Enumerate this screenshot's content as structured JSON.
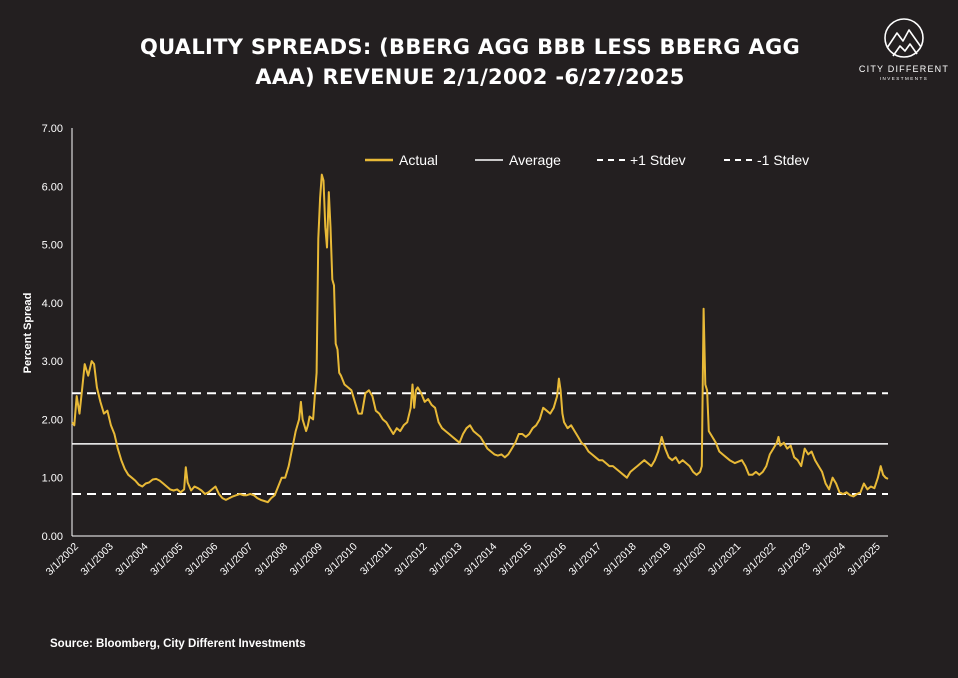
{
  "title_line1": "QUALITY SPREADS: (BBERG AGG BBB LESS BBERG AGG",
  "title_line2": "AAA) REVENUE 2/1/2002 -6/27/2025",
  "logo": {
    "name": "CITY DIFFERENT",
    "sub": "INVESTMENTS",
    "icon": "mountain-circle-icon"
  },
  "source": "Source: Bloomberg, City Different Investments",
  "colors": {
    "background": "#231f20",
    "actual": "#e8b937",
    "lines": "#ffffff"
  },
  "chart_data": {
    "type": "line",
    "ylabel": "Percent Spread",
    "ylim": [
      0,
      7
    ],
    "y_ticks": [
      "0.00",
      "1.00",
      "2.00",
      "3.00",
      "4.00",
      "5.00",
      "6.00",
      "7.00"
    ],
    "x_ticks": [
      "3/1/2002",
      "3/1/2003",
      "3/1/2004",
      "3/1/2005",
      "3/1/2006",
      "3/1/2007",
      "3/1/2008",
      "3/1/2009",
      "3/1/2010",
      "3/1/2011",
      "3/1/2012",
      "3/1/2013",
      "3/1/2014",
      "3/1/2015",
      "3/1/2016",
      "3/1/2017",
      "3/1/2018",
      "3/1/2019",
      "3/1/2020",
      "3/1/2021",
      "3/1/2022",
      "3/1/2023",
      "3/1/2024",
      "3/1/2025"
    ],
    "x_range": [
      "2/1/2002",
      "6/27/2025"
    ],
    "legend": [
      "Actual",
      "Average",
      "+1 Stdev",
      "-1 Stdev"
    ],
    "legend_position": "top",
    "grid": false,
    "average": 1.58,
    "plus_1_stdev": 2.45,
    "minus_1_stdev": 0.72,
    "series": [
      {
        "name": "Actual",
        "points": [
          [
            2002.09,
            1.95
          ],
          [
            2002.15,
            1.9
          ],
          [
            2002.22,
            2.4
          ],
          [
            2002.3,
            2.1
          ],
          [
            2002.38,
            2.55
          ],
          [
            2002.45,
            2.95
          ],
          [
            2002.55,
            2.75
          ],
          [
            2002.65,
            3.0
          ],
          [
            2002.72,
            2.95
          ],
          [
            2002.8,
            2.55
          ],
          [
            2002.9,
            2.3
          ],
          [
            2003.0,
            2.1
          ],
          [
            2003.1,
            2.15
          ],
          [
            2003.2,
            1.9
          ],
          [
            2003.3,
            1.75
          ],
          [
            2003.4,
            1.5
          ],
          [
            2003.5,
            1.3
          ],
          [
            2003.6,
            1.15
          ],
          [
            2003.7,
            1.05
          ],
          [
            2003.8,
            1.0
          ],
          [
            2003.9,
            0.95
          ],
          [
            2004.0,
            0.88
          ],
          [
            2004.1,
            0.85
          ],
          [
            2004.2,
            0.9
          ],
          [
            2004.3,
            0.92
          ],
          [
            2004.4,
            0.97
          ],
          [
            2004.5,
            0.98
          ],
          [
            2004.6,
            0.95
          ],
          [
            2004.7,
            0.9
          ],
          [
            2004.8,
            0.85
          ],
          [
            2004.9,
            0.8
          ],
          [
            2005.0,
            0.78
          ],
          [
            2005.1,
            0.8
          ],
          [
            2005.2,
            0.75
          ],
          [
            2005.3,
            0.8
          ],
          [
            2005.35,
            1.18
          ],
          [
            2005.4,
            0.92
          ],
          [
            2005.5,
            0.78
          ],
          [
            2005.6,
            0.85
          ],
          [
            2005.7,
            0.82
          ],
          [
            2005.8,
            0.78
          ],
          [
            2005.9,
            0.72
          ],
          [
            2006.0,
            0.75
          ],
          [
            2006.1,
            0.8
          ],
          [
            2006.2,
            0.85
          ],
          [
            2006.3,
            0.72
          ],
          [
            2006.4,
            0.65
          ],
          [
            2006.5,
            0.62
          ],
          [
            2006.6,
            0.65
          ],
          [
            2006.7,
            0.68
          ],
          [
            2006.8,
            0.7
          ],
          [
            2006.9,
            0.72
          ],
          [
            2007.0,
            0.7
          ],
          [
            2007.1,
            0.7
          ],
          [
            2007.2,
            0.72
          ],
          [
            2007.3,
            0.7
          ],
          [
            2007.4,
            0.65
          ],
          [
            2007.5,
            0.62
          ],
          [
            2007.6,
            0.6
          ],
          [
            2007.7,
            0.58
          ],
          [
            2007.8,
            0.65
          ],
          [
            2007.9,
            0.7
          ],
          [
            2008.0,
            0.85
          ],
          [
            2008.1,
            1.0
          ],
          [
            2008.2,
            1.0
          ],
          [
            2008.3,
            1.2
          ],
          [
            2008.4,
            1.5
          ],
          [
            2008.5,
            1.8
          ],
          [
            2008.6,
            2.0
          ],
          [
            2008.65,
            2.3
          ],
          [
            2008.7,
            2.0
          ],
          [
            2008.8,
            1.8
          ],
          [
            2008.85,
            1.9
          ],
          [
            2008.9,
            2.05
          ],
          [
            2009.0,
            2.0
          ],
          [
            2009.05,
            2.4
          ],
          [
            2009.1,
            2.8
          ],
          [
            2009.15,
            5.1
          ],
          [
            2009.2,
            5.8
          ],
          [
            2009.25,
            6.2
          ],
          [
            2009.3,
            6.1
          ],
          [
            2009.35,
            5.3
          ],
          [
            2009.4,
            4.95
          ],
          [
            2009.45,
            5.9
          ],
          [
            2009.5,
            5.3
          ],
          [
            2009.55,
            4.4
          ],
          [
            2009.6,
            4.3
          ],
          [
            2009.65,
            3.3
          ],
          [
            2009.7,
            3.2
          ],
          [
            2009.75,
            2.8
          ],
          [
            2009.8,
            2.75
          ],
          [
            2009.9,
            2.6
          ],
          [
            2010.0,
            2.55
          ],
          [
            2010.1,
            2.5
          ],
          [
            2010.2,
            2.3
          ],
          [
            2010.3,
            2.1
          ],
          [
            2010.4,
            2.1
          ],
          [
            2010.5,
            2.45
          ],
          [
            2010.6,
            2.5
          ],
          [
            2010.7,
            2.4
          ],
          [
            2010.8,
            2.15
          ],
          [
            2010.9,
            2.1
          ],
          [
            2011.0,
            2.0
          ],
          [
            2011.1,
            1.95
          ],
          [
            2011.2,
            1.85
          ],
          [
            2011.3,
            1.75
          ],
          [
            2011.4,
            1.85
          ],
          [
            2011.5,
            1.8
          ],
          [
            2011.6,
            1.9
          ],
          [
            2011.7,
            1.95
          ],
          [
            2011.8,
            2.2
          ],
          [
            2011.85,
            2.6
          ],
          [
            2011.9,
            2.2
          ],
          [
            2011.95,
            2.5
          ],
          [
            2012.0,
            2.55
          ],
          [
            2012.1,
            2.45
          ],
          [
            2012.2,
            2.3
          ],
          [
            2012.3,
            2.35
          ],
          [
            2012.4,
            2.25
          ],
          [
            2012.5,
            2.2
          ],
          [
            2012.6,
            1.95
          ],
          [
            2012.7,
            1.85
          ],
          [
            2012.8,
            1.8
          ],
          [
            2012.9,
            1.75
          ],
          [
            2013.0,
            1.7
          ],
          [
            2013.1,
            1.65
          ],
          [
            2013.2,
            1.6
          ],
          [
            2013.3,
            1.75
          ],
          [
            2013.4,
            1.85
          ],
          [
            2013.5,
            1.9
          ],
          [
            2013.6,
            1.8
          ],
          [
            2013.7,
            1.75
          ],
          [
            2013.8,
            1.7
          ],
          [
            2013.9,
            1.6
          ],
          [
            2014.0,
            1.5
          ],
          [
            2014.1,
            1.45
          ],
          [
            2014.2,
            1.4
          ],
          [
            2014.3,
            1.38
          ],
          [
            2014.4,
            1.4
          ],
          [
            2014.5,
            1.35
          ],
          [
            2014.6,
            1.4
          ],
          [
            2014.7,
            1.5
          ],
          [
            2014.8,
            1.6
          ],
          [
            2014.9,
            1.75
          ],
          [
            2015.0,
            1.75
          ],
          [
            2015.1,
            1.7
          ],
          [
            2015.2,
            1.75
          ],
          [
            2015.3,
            1.85
          ],
          [
            2015.4,
            1.9
          ],
          [
            2015.5,
            2.0
          ],
          [
            2015.6,
            2.2
          ],
          [
            2015.7,
            2.15
          ],
          [
            2015.8,
            2.1
          ],
          [
            2015.9,
            2.2
          ],
          [
            2016.0,
            2.4
          ],
          [
            2016.05,
            2.7
          ],
          [
            2016.1,
            2.5
          ],
          [
            2016.15,
            2.1
          ],
          [
            2016.2,
            1.95
          ],
          [
            2016.3,
            1.85
          ],
          [
            2016.4,
            1.9
          ],
          [
            2016.5,
            1.8
          ],
          [
            2016.6,
            1.7
          ],
          [
            2016.7,
            1.6
          ],
          [
            2016.8,
            1.55
          ],
          [
            2016.9,
            1.45
          ],
          [
            2017.0,
            1.4
          ],
          [
            2017.1,
            1.35
          ],
          [
            2017.2,
            1.3
          ],
          [
            2017.3,
            1.3
          ],
          [
            2017.4,
            1.25
          ],
          [
            2017.5,
            1.2
          ],
          [
            2017.6,
            1.2
          ],
          [
            2017.7,
            1.15
          ],
          [
            2017.8,
            1.1
          ],
          [
            2017.9,
            1.05
          ],
          [
            2018.0,
            1.0
          ],
          [
            2018.1,
            1.1
          ],
          [
            2018.2,
            1.15
          ],
          [
            2018.3,
            1.2
          ],
          [
            2018.4,
            1.25
          ],
          [
            2018.5,
            1.3
          ],
          [
            2018.6,
            1.25
          ],
          [
            2018.7,
            1.2
          ],
          [
            2018.8,
            1.3
          ],
          [
            2018.9,
            1.45
          ],
          [
            2019.0,
            1.7
          ],
          [
            2019.1,
            1.5
          ],
          [
            2019.2,
            1.35
          ],
          [
            2019.3,
            1.3
          ],
          [
            2019.4,
            1.35
          ],
          [
            2019.5,
            1.25
          ],
          [
            2019.6,
            1.3
          ],
          [
            2019.7,
            1.25
          ],
          [
            2019.8,
            1.2
          ],
          [
            2019.9,
            1.1
          ],
          [
            2020.0,
            1.05
          ],
          [
            2020.1,
            1.1
          ],
          [
            2020.15,
            1.2
          ],
          [
            2020.2,
            3.9
          ],
          [
            2020.25,
            2.6
          ],
          [
            2020.3,
            2.5
          ],
          [
            2020.35,
            1.8
          ],
          [
            2020.45,
            1.7
          ],
          [
            2020.55,
            1.6
          ],
          [
            2020.65,
            1.45
          ],
          [
            2020.75,
            1.4
          ],
          [
            2020.85,
            1.35
          ],
          [
            2020.95,
            1.3
          ],
          [
            2021.1,
            1.25
          ],
          [
            2021.3,
            1.3
          ],
          [
            2021.4,
            1.2
          ],
          [
            2021.5,
            1.05
          ],
          [
            2021.6,
            1.05
          ],
          [
            2021.7,
            1.1
          ],
          [
            2021.8,
            1.05
          ],
          [
            2021.9,
            1.1
          ],
          [
            2022.0,
            1.2
          ],
          [
            2022.1,
            1.4
          ],
          [
            2022.2,
            1.5
          ],
          [
            2022.3,
            1.6
          ],
          [
            2022.35,
            1.7
          ],
          [
            2022.4,
            1.55
          ],
          [
            2022.5,
            1.6
          ],
          [
            2022.6,
            1.5
          ],
          [
            2022.7,
            1.55
          ],
          [
            2022.8,
            1.35
          ],
          [
            2022.9,
            1.3
          ],
          [
            2023.0,
            1.2
          ],
          [
            2023.1,
            1.5
          ],
          [
            2023.2,
            1.4
          ],
          [
            2023.3,
            1.45
          ],
          [
            2023.4,
            1.3
          ],
          [
            2023.5,
            1.2
          ],
          [
            2023.6,
            1.1
          ],
          [
            2023.7,
            0.9
          ],
          [
            2023.8,
            0.8
          ],
          [
            2023.9,
            1.0
          ],
          [
            2024.0,
            0.9
          ],
          [
            2024.1,
            0.75
          ],
          [
            2024.2,
            0.72
          ],
          [
            2024.3,
            0.75
          ],
          [
            2024.4,
            0.7
          ],
          [
            2024.5,
            0.68
          ],
          [
            2024.6,
            0.72
          ],
          [
            2024.7,
            0.75
          ],
          [
            2024.8,
            0.9
          ],
          [
            2024.9,
            0.8
          ],
          [
            2025.0,
            0.85
          ],
          [
            2025.1,
            0.82
          ],
          [
            2025.2,
            1.0
          ],
          [
            2025.28,
            1.2
          ],
          [
            2025.35,
            1.05
          ],
          [
            2025.42,
            1.0
          ],
          [
            2025.49,
            0.98
          ]
        ]
      }
    ]
  }
}
